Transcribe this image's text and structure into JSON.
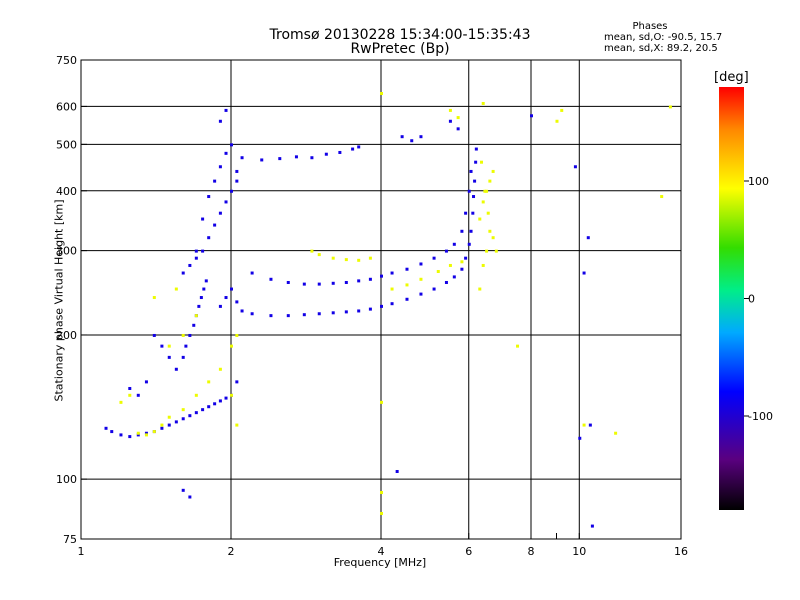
{
  "chart_data": {
    "type": "scatter",
    "title": "Tromsø 20130228 15:34:00-15:35:43",
    "subtitle": "RwPretec (Bp)",
    "xlabel": "Frequency [MHz]",
    "ylabel": "Stationary phase Virtual Height [km]",
    "x_scale": "log",
    "y_scale": "log",
    "xlim": [
      1,
      16
    ],
    "ylim": [
      75,
      750
    ],
    "grid": true,
    "x_ticks": [
      1,
      2,
      4,
      6,
      8,
      9,
      10,
      16
    ],
    "x_tick_labels": [
      "1",
      "2",
      "4",
      "6",
      "8",
      "",
      "10",
      "16"
    ],
    "x_gridlines": [
      2,
      4,
      6,
      8,
      10
    ],
    "y_ticks": [
      75,
      100,
      200,
      300,
      400,
      500,
      600,
      750
    ],
    "y_tick_labels": [
      "75",
      "100",
      "200",
      "300",
      "400",
      "500",
      "600",
      "750"
    ],
    "y_gridlines": [
      100,
      200,
      300,
      400,
      500,
      600
    ],
    "phases": {
      "title": "Phases",
      "o_line": "mean, sd,O: -90.5, 15.7",
      "x_line": "mean, sd,X: 89.2, 20.5"
    },
    "colorbar": {
      "unit": "[deg]",
      "range": [
        -180,
        180
      ],
      "ticks": [
        100,
        0,
        -100
      ],
      "tick_labels": [
        "100",
        "0",
        "-100"
      ]
    },
    "series": [
      {
        "mode": "O",
        "mean_phase": -90.5,
        "points": [
          [
            1.12,
            128
          ],
          [
            1.15,
            126
          ],
          [
            1.2,
            124
          ],
          [
            1.25,
            123
          ],
          [
            1.3,
            124
          ],
          [
            1.35,
            125
          ],
          [
            1.4,
            126
          ],
          [
            1.45,
            128
          ],
          [
            1.5,
            130
          ],
          [
            1.55,
            132
          ],
          [
            1.6,
            134
          ],
          [
            1.65,
            136
          ],
          [
            1.7,
            138
          ],
          [
            1.75,
            140
          ],
          [
            1.8,
            142
          ],
          [
            1.85,
            144
          ],
          [
            1.9,
            146
          ],
          [
            1.95,
            148
          ],
          [
            2.0,
            150
          ],
          [
            2.05,
            160
          ],
          [
            1.55,
            170
          ],
          [
            1.6,
            180
          ],
          [
            1.62,
            190
          ],
          [
            1.65,
            200
          ],
          [
            1.68,
            210
          ],
          [
            1.7,
            220
          ],
          [
            1.72,
            230
          ],
          [
            1.74,
            240
          ],
          [
            1.76,
            250
          ],
          [
            1.78,
            260
          ],
          [
            1.6,
            270
          ],
          [
            1.65,
            280
          ],
          [
            1.7,
            290
          ],
          [
            1.75,
            300
          ],
          [
            1.8,
            320
          ],
          [
            1.85,
            340
          ],
          [
            1.9,
            360
          ],
          [
            1.95,
            380
          ],
          [
            2.0,
            400
          ],
          [
            2.05,
            420
          ],
          [
            1.7,
            300
          ],
          [
            1.75,
            350
          ],
          [
            1.8,
            390
          ],
          [
            1.85,
            420
          ],
          [
            1.9,
            450
          ],
          [
            1.95,
            480
          ],
          [
            2.0,
            500
          ],
          [
            2.05,
            440
          ],
          [
            1.9,
            560
          ],
          [
            1.95,
            590
          ],
          [
            1.9,
            230
          ],
          [
            1.95,
            240
          ],
          [
            2.0,
            250
          ],
          [
            2.05,
            235
          ],
          [
            2.1,
            225
          ],
          [
            2.2,
            222
          ],
          [
            2.4,
            220
          ],
          [
            2.6,
            220
          ],
          [
            2.8,
            221
          ],
          [
            3.0,
            222
          ],
          [
            3.2,
            223
          ],
          [
            3.4,
            224
          ],
          [
            3.6,
            225
          ],
          [
            3.8,
            227
          ],
          [
            4.0,
            230
          ],
          [
            4.2,
            233
          ],
          [
            4.5,
            238
          ],
          [
            4.8,
            244
          ],
          [
            5.1,
            250
          ],
          [
            5.4,
            258
          ],
          [
            5.6,
            265
          ],
          [
            5.8,
            275
          ],
          [
            5.9,
            290
          ],
          [
            6.0,
            310
          ],
          [
            6.05,
            330
          ],
          [
            6.1,
            360
          ],
          [
            6.12,
            390
          ],
          [
            6.15,
            420
          ],
          [
            6.18,
            460
          ],
          [
            6.2,
            490
          ],
          [
            2.2,
            270
          ],
          [
            2.4,
            262
          ],
          [
            2.6,
            258
          ],
          [
            2.8,
            256
          ],
          [
            3.0,
            256
          ],
          [
            3.2,
            257
          ],
          [
            3.4,
            258
          ],
          [
            3.6,
            260
          ],
          [
            3.8,
            262
          ],
          [
            4.0,
            266
          ],
          [
            4.2,
            270
          ],
          [
            4.5,
            275
          ],
          [
            4.8,
            282
          ],
          [
            5.1,
            290
          ],
          [
            5.4,
            300
          ],
          [
            5.6,
            310
          ],
          [
            5.8,
            330
          ],
          [
            5.9,
            360
          ],
          [
            6.0,
            400
          ],
          [
            6.05,
            440
          ],
          [
            2.1,
            470
          ],
          [
            2.3,
            465
          ],
          [
            2.5,
            468
          ],
          [
            2.7,
            472
          ],
          [
            2.9,
            470
          ],
          [
            3.1,
            478
          ],
          [
            3.3,
            482
          ],
          [
            3.5,
            490
          ],
          [
            3.6,
            495
          ],
          [
            4.4,
            520
          ],
          [
            4.6,
            510
          ],
          [
            4.8,
            520
          ],
          [
            5.5,
            560
          ],
          [
            5.7,
            540
          ],
          [
            1.4,
            200
          ],
          [
            1.45,
            190
          ],
          [
            1.5,
            180
          ],
          [
            1.35,
            160
          ],
          [
            1.3,
            150
          ],
          [
            1.25,
            155
          ],
          [
            9.8,
            450
          ],
          [
            10.4,
            320
          ],
          [
            10.2,
            270
          ],
          [
            10.6,
            80
          ],
          [
            10.0,
            122
          ],
          [
            10.5,
            130
          ],
          [
            4.3,
            104
          ],
          [
            1.6,
            95
          ],
          [
            1.65,
            92
          ],
          [
            8.0,
            575
          ]
        ]
      },
      {
        "mode": "X",
        "mean_phase": 89.2,
        "points": [
          [
            1.3,
            125
          ],
          [
            1.35,
            124
          ],
          [
            1.4,
            126
          ],
          [
            1.45,
            130
          ],
          [
            1.5,
            135
          ],
          [
            1.6,
            140
          ],
          [
            1.7,
            150
          ],
          [
            1.8,
            160
          ],
          [
            1.9,
            170
          ],
          [
            2.0,
            150
          ],
          [
            1.5,
            190
          ],
          [
            1.6,
            200
          ],
          [
            1.7,
            220
          ],
          [
            1.55,
            250
          ],
          [
            2.9,
            300
          ],
          [
            3.0,
            295
          ],
          [
            3.2,
            290
          ],
          [
            3.4,
            288
          ],
          [
            3.6,
            287
          ],
          [
            3.8,
            290
          ],
          [
            4.2,
            250
          ],
          [
            4.5,
            255
          ],
          [
            4.8,
            262
          ],
          [
            5.2,
            272
          ],
          [
            5.5,
            280
          ],
          [
            5.8,
            285
          ],
          [
            6.3,
            250
          ],
          [
            6.4,
            280
          ],
          [
            6.5,
            300
          ],
          [
            6.6,
            330
          ],
          [
            6.3,
            350
          ],
          [
            6.4,
            380
          ],
          [
            6.5,
            400
          ],
          [
            6.6,
            420
          ],
          [
            6.7,
            440
          ],
          [
            6.35,
            460
          ],
          [
            6.45,
            400
          ],
          [
            6.55,
            360
          ],
          [
            6.7,
            320
          ],
          [
            6.8,
            300
          ],
          [
            4.0,
            640
          ],
          [
            4.0,
            85
          ],
          [
            4.0,
            145
          ],
          [
            4.0,
            94
          ],
          [
            9.2,
            590
          ],
          [
            9.0,
            560
          ],
          [
            7.5,
            190
          ],
          [
            1.4,
            240
          ],
          [
            1.2,
            145
          ],
          [
            1.25,
            150
          ],
          [
            2.05,
            200
          ],
          [
            2.0,
            190
          ],
          [
            2.05,
            130
          ],
          [
            5.5,
            590
          ],
          [
            5.7,
            570
          ],
          [
            6.4,
            610
          ],
          [
            15.2,
            600
          ],
          [
            14.6,
            390
          ],
          [
            11.8,
            125
          ],
          [
            10.2,
            130
          ]
        ]
      }
    ]
  }
}
